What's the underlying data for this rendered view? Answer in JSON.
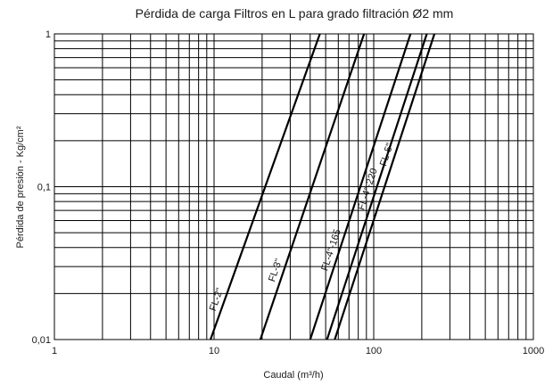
{
  "chart_data": {
    "type": "line",
    "title": "Pérdida de carga Filtros en L para grado filtración Ø2 mm",
    "xlabel": "Caudal (m³/h)",
    "ylabel": "Pérdida de presión - Kg/cm²",
    "xscale": "log",
    "yscale": "log",
    "xlim": [
      1,
      1000
    ],
    "ylim": [
      0.01,
      1
    ],
    "xticks": [
      1,
      10,
      100,
      1000
    ],
    "xtick_labels": [
      "1",
      "10",
      "100",
      "1000"
    ],
    "yticks": [
      0.01,
      0.1,
      1
    ],
    "ytick_labels": [
      "0,01",
      "0,1",
      "1"
    ],
    "grid": true,
    "legend": "none",
    "series": [
      {
        "name": "FL-2\"",
        "x": [
          9.5,
          46
        ],
        "y": [
          0.01,
          1
        ]
      },
      {
        "name": "FL-3\"",
        "x": [
          19.5,
          87
        ],
        "y": [
          0.01,
          1
        ]
      },
      {
        "name": "FL-4\"-165",
        "x": [
          40,
          170
        ],
        "y": [
          0.01,
          1
        ]
      },
      {
        "name": "FL-4\"-220",
        "x": [
          51,
          215
        ],
        "y": [
          0.01,
          1
        ]
      },
      {
        "name": "FL-5\"",
        "x": [
          57,
          240
        ],
        "y": [
          0.01,
          1
        ]
      }
    ]
  }
}
